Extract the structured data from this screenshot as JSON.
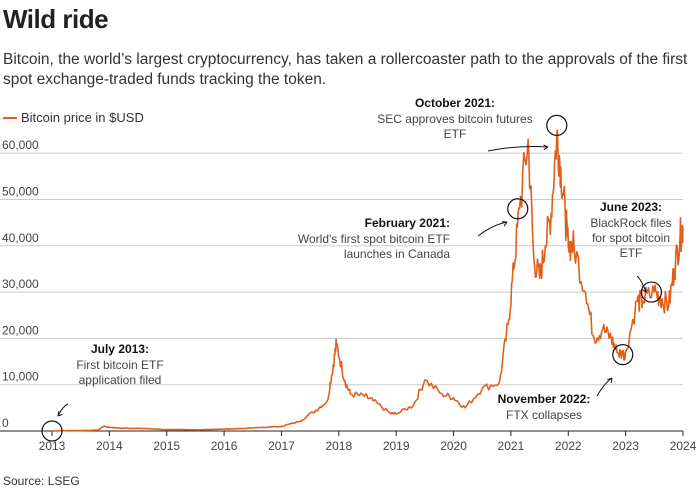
{
  "header": {
    "title": "Wild ride",
    "subtitle": "Bitcoin, the world’s largest cryptocurrency, has taken a rollercoaster path to the approvals of the first spot exchange-traded funds tracking the token."
  },
  "source": "Source: LSEG",
  "colors": {
    "series": "#e0601b",
    "grid": "#cccccc",
    "axis": "#222222"
  },
  "chart_data": {
    "type": "line",
    "title": "Wild ride",
    "xlabel": "",
    "ylabel": "",
    "xlim": [
      2013,
      2024
    ],
    "ylim": [
      0,
      65000
    ],
    "grid": true,
    "legend_position": "top-left",
    "x_ticks": [
      "2013",
      "2014",
      "2015",
      "2016",
      "2017",
      "2018",
      "2019",
      "2020",
      "2021",
      "2022",
      "2023",
      "2024"
    ],
    "y_ticks": [
      "0",
      "10,000",
      "20,000",
      "30,000",
      "40,000",
      "50,000",
      "60,000"
    ],
    "series": [
      {
        "name": "Bitcoin price in $USD",
        "x": [
          2013.0,
          2013.3,
          2013.5,
          2013.8,
          2013.9,
          2014.0,
          2014.2,
          2014.5,
          2014.9,
          2015.0,
          2015.5,
          2016.0,
          2016.5,
          2017.0,
          2017.3,
          2017.6,
          2017.8,
          2017.9,
          2017.96,
          2018.1,
          2018.2,
          2018.45,
          2018.6,
          2018.9,
          2019.0,
          2019.3,
          2019.5,
          2019.8,
          2020.0,
          2020.2,
          2020.5,
          2020.8,
          2020.95,
          2021.05,
          2021.15,
          2021.3,
          2021.4,
          2021.5,
          2021.6,
          2021.7,
          2021.8,
          2021.87,
          2021.95,
          2022.0,
          2022.1,
          2022.3,
          2022.45,
          2022.6,
          2022.75,
          2022.85,
          2022.95,
          2023.0,
          2023.2,
          2023.3,
          2023.5,
          2023.6,
          2023.75,
          2023.85,
          2023.95,
          2024.0
        ],
        "y": [
          13,
          100,
          90,
          200,
          1000,
          800,
          600,
          600,
          350,
          300,
          250,
          400,
          650,
          1000,
          2000,
          4500,
          6500,
          14000,
          19000,
          11000,
          8000,
          7500,
          6500,
          3800,
          3700,
          5500,
          11000,
          8000,
          7200,
          5000,
          9200,
          10500,
          23000,
          35000,
          48000,
          63000,
          37000,
          33000,
          40000,
          47000,
          64000,
          57000,
          46000,
          40000,
          40000,
          30000,
          20000,
          22000,
          20000,
          17000,
          16500,
          17000,
          28000,
          28000,
          30000,
          29000,
          27000,
          35000,
          42000,
          44000
        ]
      }
    ]
  },
  "annotations": [
    {
      "id": "jul2013",
      "title": "July 2013:",
      "lines": [
        "First bitcoin ETF",
        "application filed"
      ],
      "x": 2013.0,
      "y": 0
    },
    {
      "id": "feb2021",
      "title": "February 2021:",
      "lines": [
        "World's first spot bitcoin ETF",
        "launches in Canada"
      ],
      "x": 2021.12,
      "y": 48000
    },
    {
      "id": "oct2021",
      "title": "October 2021:",
      "lines": [
        "SEC approves bitcoin futures",
        "ETF"
      ],
      "x": 2021.8,
      "y": 66000
    },
    {
      "id": "nov2022",
      "title": "November 2022:",
      "lines": [
        "FTX collapses"
      ],
      "x": 2022.95,
      "y": 16500
    },
    {
      "id": "jun2023",
      "title": "June 2023:",
      "lines": [
        "BlackRock files",
        "for spot bitcoin",
        "ETF"
      ],
      "x": 2023.45,
      "y": 30000
    }
  ]
}
